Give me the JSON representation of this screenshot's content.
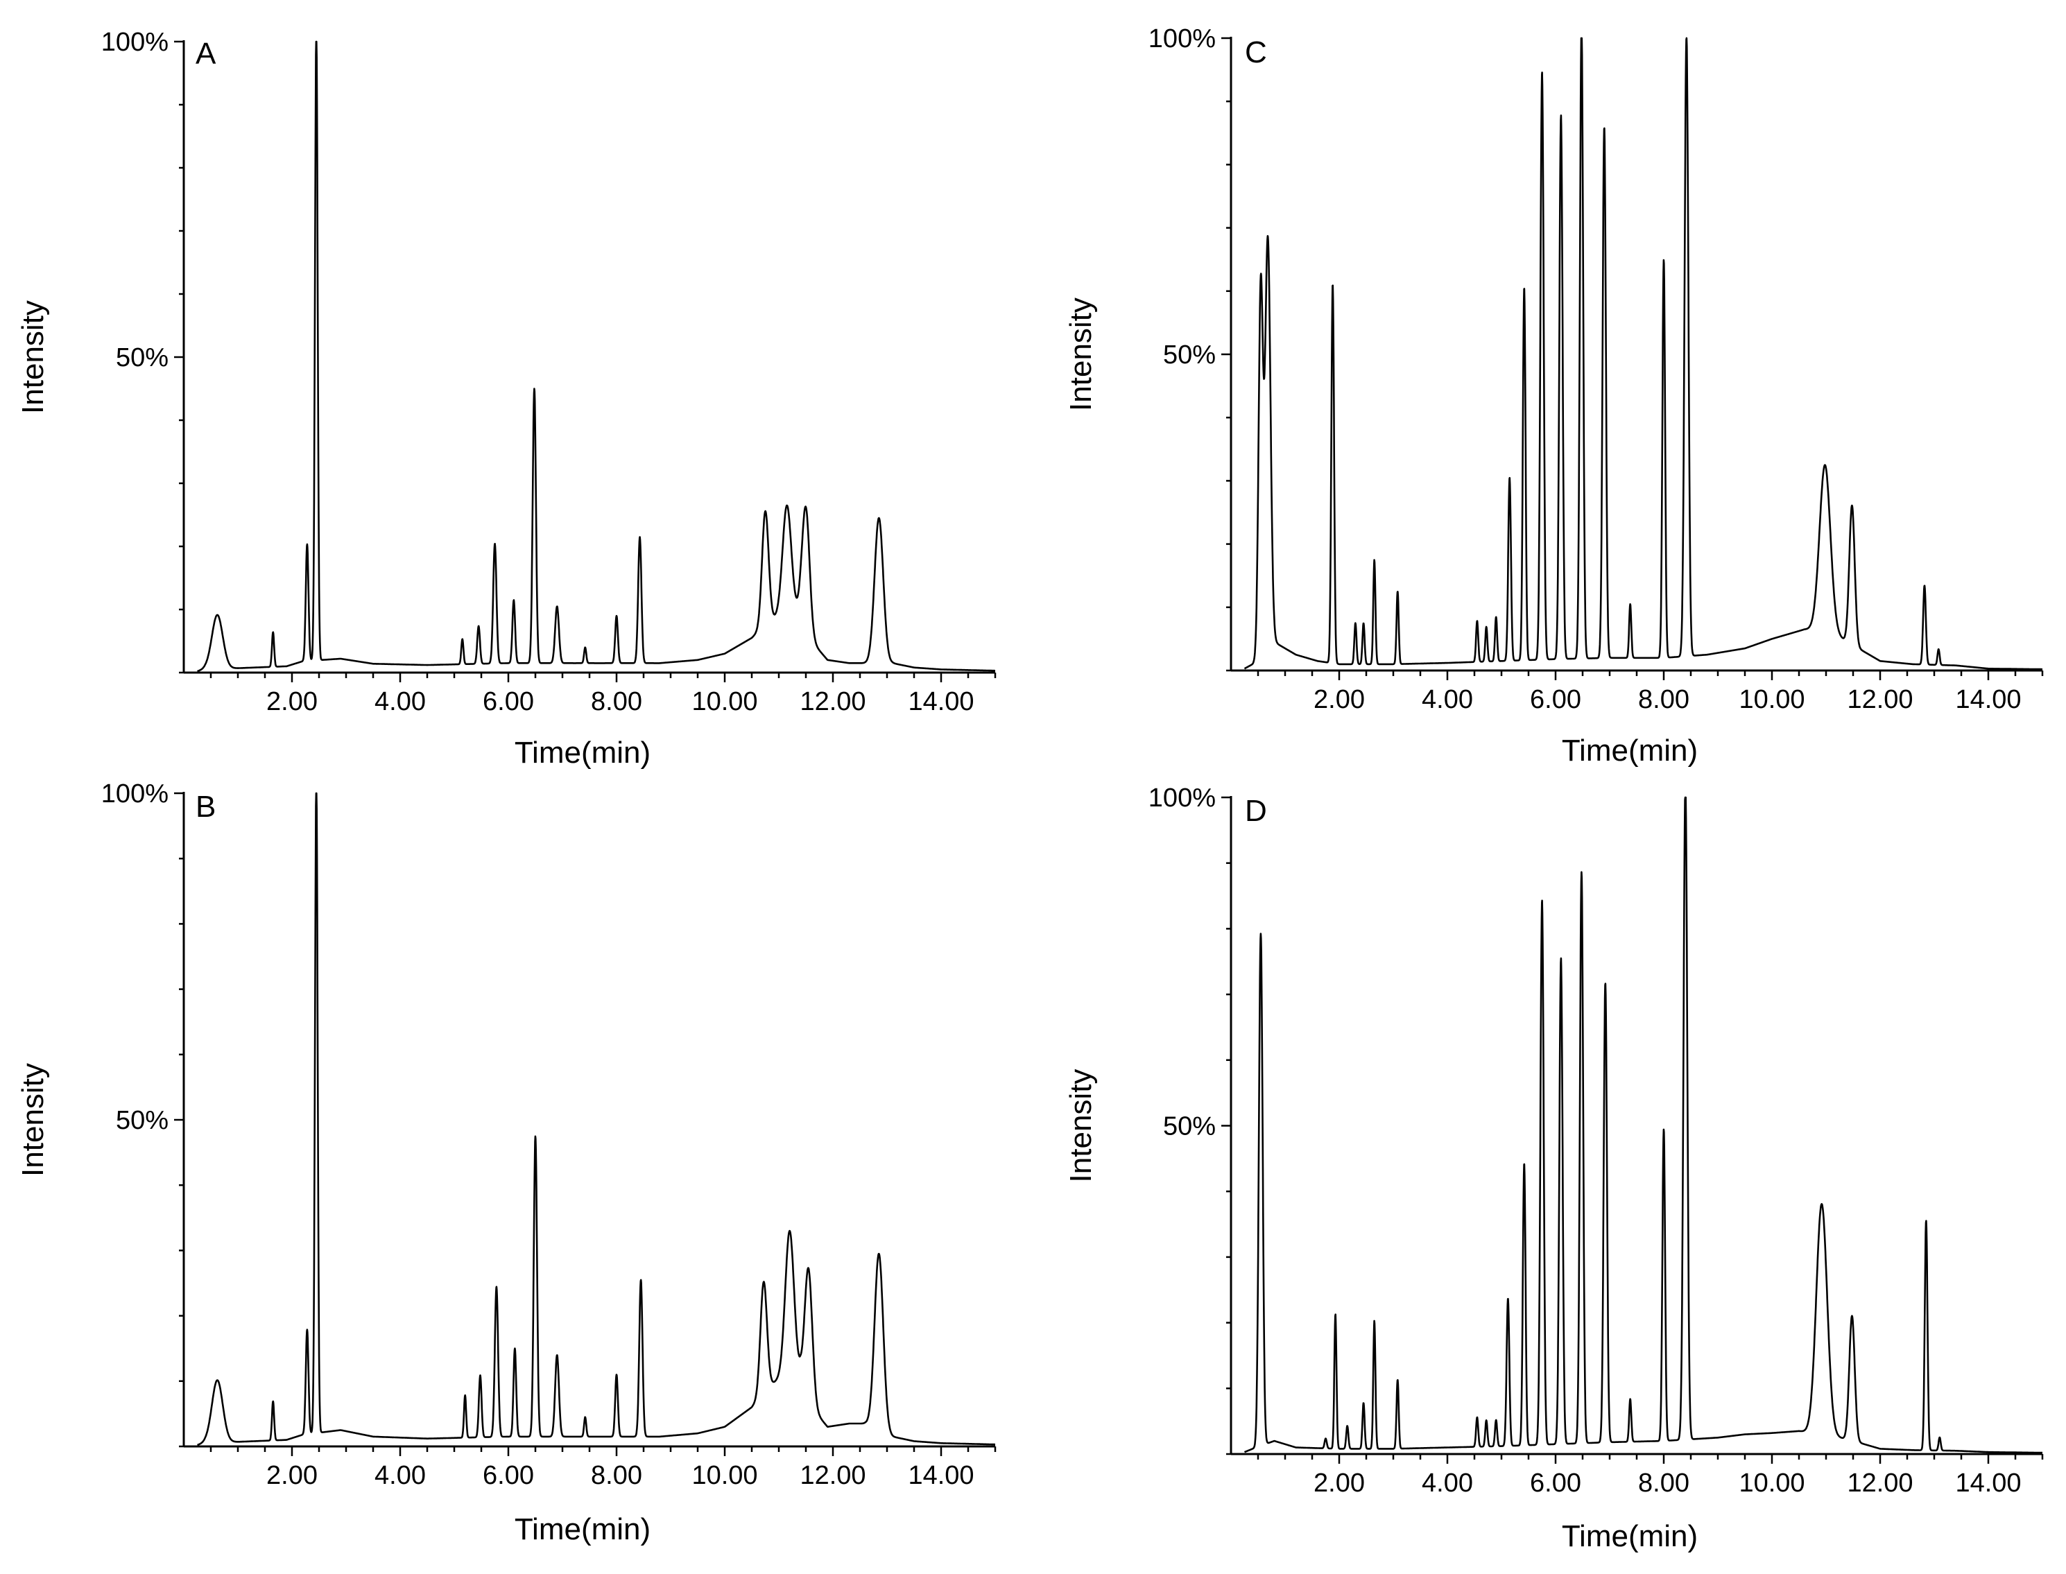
{
  "chart_data": [
    {
      "type": "line",
      "panel": "A",
      "xlabel": "Time(min)",
      "ylabel": "Intensity",
      "xlim": [
        0,
        15
      ],
      "ylim": [
        0,
        100
      ],
      "x_ticks": [
        "2.00",
        "4.00",
        "6.00",
        "8.00",
        "10.00",
        "12.00",
        "14.00"
      ],
      "y_ticks": [
        "50%",
        "100%"
      ],
      "baseline": [
        [
          0.25,
          0.2
        ],
        [
          0.4,
          0.6
        ],
        [
          1.0,
          0.7
        ],
        [
          1.9,
          1.0
        ],
        [
          2.2,
          1.8
        ],
        [
          2.9,
          2.2
        ],
        [
          3.5,
          1.4
        ],
        [
          4.5,
          1.2
        ],
        [
          6.0,
          1.5
        ],
        [
          7.5,
          1.5
        ],
        [
          8.8,
          1.5
        ],
        [
          9.5,
          2.0
        ],
        [
          10.0,
          3.0
        ],
        [
          10.5,
          5.5
        ],
        [
          10.8,
          8.0
        ],
        [
          11.1,
          9.5
        ],
        [
          11.4,
          9.5
        ],
        [
          11.6,
          5.0
        ],
        [
          11.9,
          2.0
        ],
        [
          12.3,
          1.5
        ],
        [
          12.6,
          1.5
        ],
        [
          13.1,
          1.5
        ],
        [
          13.5,
          0.8
        ],
        [
          14.0,
          0.5
        ],
        [
          15.0,
          0.3
        ]
      ],
      "peaks": [
        {
          "rt": 0.62,
          "height": 8.5,
          "width": 0.1
        },
        {
          "rt": 1.65,
          "height": 5.5,
          "width": 0.02
        },
        {
          "rt": 2.28,
          "height": 18.5,
          "width": 0.025
        },
        {
          "rt": 2.45,
          "height": 100,
          "width": 0.025
        },
        {
          "rt": 5.15,
          "height": 4,
          "width": 0.02
        },
        {
          "rt": 5.45,
          "height": 6,
          "width": 0.025
        },
        {
          "rt": 5.75,
          "height": 19,
          "width": 0.03
        },
        {
          "rt": 6.1,
          "height": 10,
          "width": 0.025
        },
        {
          "rt": 6.48,
          "height": 43.5,
          "width": 0.03
        },
        {
          "rt": 6.9,
          "height": 9,
          "width": 0.035
        },
        {
          "rt": 7.42,
          "height": 2.5,
          "width": 0.02
        },
        {
          "rt": 8.0,
          "height": 7.5,
          "width": 0.025
        },
        {
          "rt": 8.43,
          "height": 20,
          "width": 0.03
        },
        {
          "rt": 10.75,
          "height": 18,
          "width": 0.06
        },
        {
          "rt": 11.15,
          "height": 17,
          "width": 0.08
        },
        {
          "rt": 11.5,
          "height": 19,
          "width": 0.07
        },
        {
          "rt": 12.85,
          "height": 23,
          "width": 0.08
        }
      ]
    },
    {
      "type": "line",
      "panel": "B",
      "xlabel": "Time(min)",
      "ylabel": "Intensity",
      "xlim": [
        0,
        15
      ],
      "ylim": [
        0,
        100
      ],
      "x_ticks": [
        "2.00",
        "4.00",
        "6.00",
        "8.00",
        "10.00",
        "12.00",
        "14.00"
      ],
      "y_ticks": [
        "50%",
        "100%"
      ],
      "baseline": [
        [
          0.25,
          0.2
        ],
        [
          0.4,
          0.6
        ],
        [
          1.0,
          0.7
        ],
        [
          1.9,
          1.0
        ],
        [
          2.2,
          1.8
        ],
        [
          2.9,
          2.5
        ],
        [
          3.5,
          1.5
        ],
        [
          4.5,
          1.2
        ],
        [
          6.0,
          1.5
        ],
        [
          7.5,
          1.5
        ],
        [
          8.8,
          1.5
        ],
        [
          9.5,
          2.0
        ],
        [
          10.0,
          3.0
        ],
        [
          10.5,
          6.0
        ],
        [
          10.8,
          9.0
        ],
        [
          11.1,
          11.0
        ],
        [
          11.4,
          11.0
        ],
        [
          11.6,
          6.0
        ],
        [
          11.9,
          3.0
        ],
        [
          12.3,
          3.5
        ],
        [
          12.6,
          3.5
        ],
        [
          13.1,
          1.5
        ],
        [
          13.5,
          0.8
        ],
        [
          14.0,
          0.5
        ],
        [
          15.0,
          0.3
        ]
      ],
      "peaks": [
        {
          "rt": 0.62,
          "height": 9.5,
          "width": 0.1
        },
        {
          "rt": 1.65,
          "height": 6,
          "width": 0.02
        },
        {
          "rt": 2.28,
          "height": 16,
          "width": 0.025
        },
        {
          "rt": 2.45,
          "height": 100,
          "width": 0.025
        },
        {
          "rt": 5.2,
          "height": 6.5,
          "width": 0.02
        },
        {
          "rt": 5.48,
          "height": 9.5,
          "width": 0.025
        },
        {
          "rt": 5.78,
          "height": 23,
          "width": 0.03
        },
        {
          "rt": 6.12,
          "height": 13.5,
          "width": 0.025
        },
        {
          "rt": 6.5,
          "height": 46,
          "width": 0.03
        },
        {
          "rt": 6.9,
          "height": 12.5,
          "width": 0.035
        },
        {
          "rt": 7.42,
          "height": 3,
          "width": 0.02
        },
        {
          "rt": 8.0,
          "height": 9.5,
          "width": 0.025
        },
        {
          "rt": 8.45,
          "height": 24,
          "width": 0.03
        },
        {
          "rt": 10.72,
          "height": 17,
          "width": 0.06
        },
        {
          "rt": 11.2,
          "height": 22,
          "width": 0.08
        },
        {
          "rt": 11.55,
          "height": 20,
          "width": 0.07
        },
        {
          "rt": 12.85,
          "height": 27,
          "width": 0.08
        }
      ]
    },
    {
      "type": "line",
      "panel": "C",
      "xlabel": "Time(min)",
      "ylabel": "Intensity",
      "xlim": [
        0,
        15
      ],
      "ylim": [
        0,
        100
      ],
      "x_ticks": [
        "2.00",
        "4.00",
        "6.00",
        "8.00",
        "10.00",
        "12.00",
        "14.00"
      ],
      "y_ticks": [
        "50%",
        "100%"
      ],
      "baseline": [
        [
          0.25,
          0.3
        ],
        [
          0.4,
          1.0
        ],
        [
          0.8,
          4.5
        ],
        [
          1.2,
          2.5
        ],
        [
          1.6,
          1.5
        ],
        [
          2.0,
          1.0
        ],
        [
          3.0,
          1.0
        ],
        [
          4.0,
          1.2
        ],
        [
          5.0,
          1.5
        ],
        [
          6.0,
          1.8
        ],
        [
          7.0,
          2.0
        ],
        [
          8.0,
          2.0
        ],
        [
          8.8,
          2.5
        ],
        [
          9.5,
          3.5
        ],
        [
          10.0,
          5.0
        ],
        [
          10.6,
          6.5
        ],
        [
          11.0,
          6.5
        ],
        [
          11.5,
          4.0
        ],
        [
          12.0,
          1.5
        ],
        [
          12.6,
          1.0
        ],
        [
          13.4,
          0.8
        ],
        [
          14.0,
          0.3
        ],
        [
          15.0,
          0.2
        ]
      ],
      "peaks": [
        {
          "rt": 0.55,
          "height": 58,
          "width": 0.04
        },
        {
          "rt": 0.68,
          "height": 65,
          "width": 0.05
        },
        {
          "rt": 1.88,
          "height": 60,
          "width": 0.025
        },
        {
          "rt": 2.3,
          "height": 6.5,
          "width": 0.02
        },
        {
          "rt": 2.45,
          "height": 6.5,
          "width": 0.02
        },
        {
          "rt": 2.65,
          "height": 16.5,
          "width": 0.02
        },
        {
          "rt": 3.08,
          "height": 11.5,
          "width": 0.02
        },
        {
          "rt": 4.55,
          "height": 6.5,
          "width": 0.02
        },
        {
          "rt": 4.72,
          "height": 5.5,
          "width": 0.02
        },
        {
          "rt": 4.9,
          "height": 7,
          "width": 0.02
        },
        {
          "rt": 5.15,
          "height": 29,
          "width": 0.025
        },
        {
          "rt": 5.42,
          "height": 59,
          "width": 0.025
        },
        {
          "rt": 5.75,
          "height": 93,
          "width": 0.03
        },
        {
          "rt": 6.1,
          "height": 86,
          "width": 0.03
        },
        {
          "rt": 6.48,
          "height": 100,
          "width": 0.03
        },
        {
          "rt": 6.9,
          "height": 84,
          "width": 0.03
        },
        {
          "rt": 7.38,
          "height": 8.5,
          "width": 0.02
        },
        {
          "rt": 8.0,
          "height": 63,
          "width": 0.025
        },
        {
          "rt": 8.42,
          "height": 98,
          "width": 0.035
        },
        {
          "rt": 10.98,
          "height": 26,
          "width": 0.1
        },
        {
          "rt": 11.48,
          "height": 22,
          "width": 0.05
        },
        {
          "rt": 12.82,
          "height": 12.5,
          "width": 0.025
        },
        {
          "rt": 13.08,
          "height": 2.5,
          "width": 0.02
        }
      ]
    },
    {
      "type": "line",
      "panel": "D",
      "xlabel": "Time(min)",
      "ylabel": "Intensity",
      "xlim": [
        0,
        15
      ],
      "ylim": [
        0,
        100
      ],
      "x_ticks": [
        "2.00",
        "4.00",
        "6.00",
        "8.00",
        "10.00",
        "12.00",
        "14.00"
      ],
      "y_ticks": [
        "50%",
        "100%"
      ],
      "baseline": [
        [
          0.25,
          0.3
        ],
        [
          0.4,
          0.8
        ],
        [
          0.8,
          2.0
        ],
        [
          1.2,
          1.0
        ],
        [
          2.0,
          0.8
        ],
        [
          3.0,
          0.8
        ],
        [
          4.0,
          1.0
        ],
        [
          5.0,
          1.2
        ],
        [
          6.0,
          1.5
        ],
        [
          7.0,
          1.8
        ],
        [
          8.0,
          2.0
        ],
        [
          9.0,
          2.5
        ],
        [
          9.5,
          3.0
        ],
        [
          10.0,
          3.2
        ],
        [
          10.5,
          3.5
        ],
        [
          11.0,
          3.0
        ],
        [
          11.5,
          2.0
        ],
        [
          12.0,
          0.8
        ],
        [
          12.6,
          0.6
        ],
        [
          13.4,
          0.5
        ],
        [
          14.0,
          0.3
        ],
        [
          15.0,
          0.2
        ]
      ],
      "peaks": [
        {
          "rt": 0.55,
          "height": 78,
          "width": 0.035
        },
        {
          "rt": 1.75,
          "height": 1.5,
          "width": 0.02
        },
        {
          "rt": 1.93,
          "height": 20.5,
          "width": 0.02
        },
        {
          "rt": 2.15,
          "height": 3.5,
          "width": 0.02
        },
        {
          "rt": 2.45,
          "height": 7,
          "width": 0.02
        },
        {
          "rt": 2.65,
          "height": 19.5,
          "width": 0.02
        },
        {
          "rt": 3.08,
          "height": 10.5,
          "width": 0.02
        },
        {
          "rt": 4.55,
          "height": 4.5,
          "width": 0.02
        },
        {
          "rt": 4.72,
          "height": 4,
          "width": 0.02
        },
        {
          "rt": 4.9,
          "height": 4,
          "width": 0.02
        },
        {
          "rt": 5.12,
          "height": 22.5,
          "width": 0.025
        },
        {
          "rt": 5.42,
          "height": 43,
          "width": 0.025
        },
        {
          "rt": 5.75,
          "height": 83,
          "width": 0.03
        },
        {
          "rt": 6.1,
          "height": 74,
          "width": 0.03
        },
        {
          "rt": 6.48,
          "height": 87,
          "width": 0.03
        },
        {
          "rt": 6.92,
          "height": 70,
          "width": 0.03
        },
        {
          "rt": 7.38,
          "height": 6.5,
          "width": 0.02
        },
        {
          "rt": 8.0,
          "height": 47.5,
          "width": 0.025
        },
        {
          "rt": 8.4,
          "height": 100,
          "width": 0.035
        },
        {
          "rt": 10.92,
          "height": 35,
          "width": 0.1
        },
        {
          "rt": 11.48,
          "height": 19,
          "width": 0.05
        },
        {
          "rt": 12.85,
          "height": 35,
          "width": 0.025
        },
        {
          "rt": 13.1,
          "height": 2,
          "width": 0.02
        }
      ]
    }
  ]
}
